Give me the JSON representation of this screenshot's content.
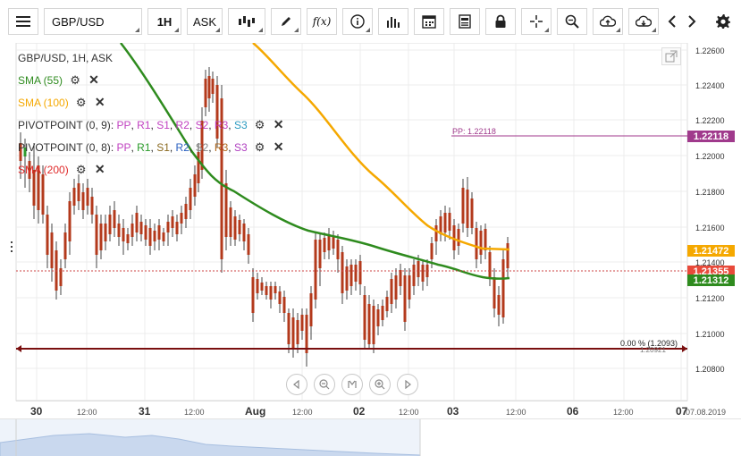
{
  "toolbar": {
    "symbol": "GBP/USD",
    "interval": "1H",
    "price_type": "ASK",
    "fx_label": "f(x)"
  },
  "legend": {
    "title": "GBP/USD, 1H, ASK",
    "sma55": "SMA (55)",
    "sma100": "SMA (100)",
    "pivot1_name": "PIVOTPOINT (0, 9)",
    "pivot2_name": "PIVOTPOINT (0, 8)",
    "pivot_sep": ": ",
    "pivot_levels": [
      "PP",
      "R1",
      "S1",
      "R2",
      "S2",
      "R3",
      "S3"
    ],
    "sma200": "SMA (200)"
  },
  "colors": {
    "sma55": "#2e8b1e",
    "sma100": "#f5a800",
    "sma200": "#e02a2a",
    "pivot": "#a03a8c",
    "bull": "#2f9a2f",
    "bear": "#b33a1c"
  },
  "price_axis": {
    "labels": [
      "1.22600",
      "1.22400",
      "1.22200",
      "1.22000",
      "1.21800",
      "1.21600",
      "1.21400",
      "1.21200",
      "1.21000",
      "1.20800"
    ],
    "tags": {
      "pp": "1.22118",
      "sma100": "1.21472",
      "last": "1.21355",
      "sma55": "1.21312"
    }
  },
  "annotations": {
    "pp_line": "PP: 1.22118",
    "fib_label": "0.00 % (1.2093)",
    "fib_sub": "1.20921"
  },
  "time_axis": {
    "labels": [
      {
        "t": "30",
        "big": true
      },
      {
        "t": "12:00",
        "big": false
      },
      {
        "t": "31",
        "big": true
      },
      {
        "t": "12:00",
        "big": false
      },
      {
        "t": "Aug",
        "big": true
      },
      {
        "t": "12:00",
        "big": false
      },
      {
        "t": "02",
        "big": true
      },
      {
        "t": "12:00",
        "big": false
      },
      {
        "t": "03",
        "big": true
      },
      {
        "t": "12:00",
        "big": false
      },
      {
        "t": "06",
        "big": true
      },
      {
        "t": "12:00",
        "big": false
      },
      {
        "t": "07",
        "big": true
      },
      {
        "t": "07.08.2019",
        "big": false
      }
    ]
  }
}
